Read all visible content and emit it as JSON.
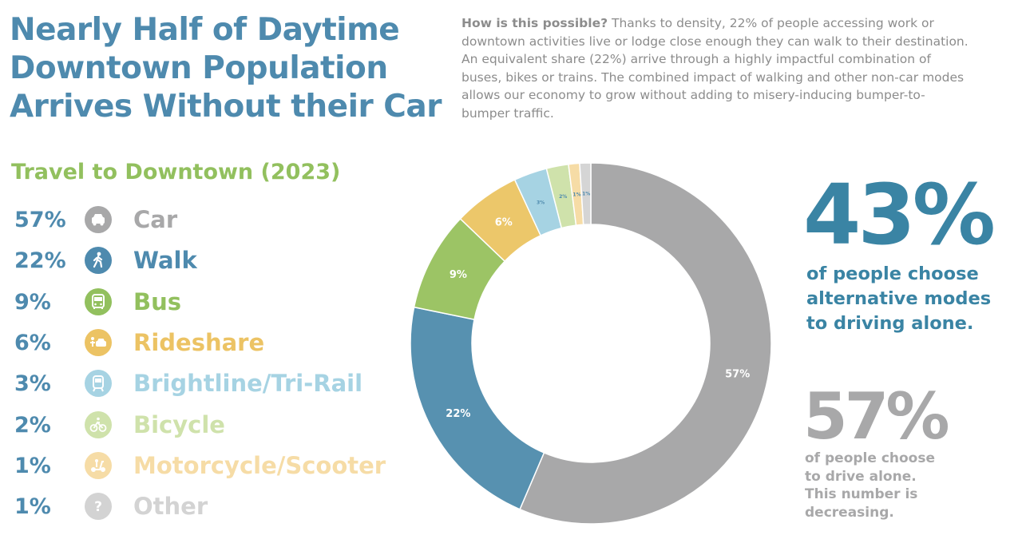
{
  "headline": [
    "Nearly Half of Daytime",
    "Downtown Population",
    "Arrives Without their Car"
  ],
  "intro": {
    "lead": "How is this possible?",
    "body": " Thanks to density, 22% of people accessing work or downtown activities live or lodge close enough they can walk to their destination. An equivalent share (22%) arrive through a highly impactful combination of buses, bikes or trains. The combined impact of walking and other non-car modes allows our economy to grow without adding to misery-inducing bumper-to-bumper traffic."
  },
  "colors": {
    "title_blue": "#4e8aae",
    "dark_teal": "#3a84a4",
    "green": "#92c05e",
    "grey": "#a8a8a9"
  },
  "legend": [
    {
      "pct": "57%",
      "label": "Car",
      "icon": "car-icon",
      "color": "#a8a8a9"
    },
    {
      "pct": "22%",
      "label": "Walk",
      "icon": "walk-icon",
      "color": "#4e8aae"
    },
    {
      "pct": "9%",
      "label": "Bus",
      "icon": "bus-icon",
      "color": "#92c05e"
    },
    {
      "pct": "6%",
      "label": "Rideshare",
      "icon": "rideshare-icon",
      "color": "#ecc364"
    },
    {
      "pct": "3%",
      "label": "Brightline/Tri-Rail",
      "icon": "train-icon",
      "color": "#a6d3e3"
    },
    {
      "pct": "2%",
      "label": "Bicycle",
      "icon": "bicycle-icon",
      "color": "#cfe2ab"
    },
    {
      "pct": "1%",
      "label": "Motorcycle/Scooter",
      "icon": "scooter-icon",
      "color": "#f6dca6"
    },
    {
      "pct": "1%",
      "label": "Other",
      "icon": "question-icon",
      "color": "#d3d3d3"
    }
  ],
  "chart_data": {
    "type": "pie",
    "title": "Travel to Downtown (2023)",
    "donut": true,
    "start_angle_deg": 0,
    "direction": "clockwise",
    "slices": [
      {
        "label": "Car",
        "value": 57,
        "text": "57%",
        "color": "#a8a8a9"
      },
      {
        "label": "Walk",
        "value": 22,
        "text": "22%",
        "color": "#5791b0"
      },
      {
        "label": "Bus",
        "value": 9,
        "text": "9%",
        "color": "#9cc465"
      },
      {
        "label": "Rideshare",
        "value": 6,
        "text": "6%",
        "color": "#ecc76a"
      },
      {
        "label": "Brightline/Tri-Rail",
        "value": 3,
        "text": "3%",
        "color": "#a6d3e3"
      },
      {
        "label": "Bicycle",
        "value": 2,
        "text": "2%",
        "color": "#cfe2ab"
      },
      {
        "label": "Motorcycle/Scooter",
        "value": 1,
        "text": "1%",
        "color": "#f6dca6"
      },
      {
        "label": "Other",
        "value": 1,
        "text": "1%",
        "color": "#d5d5d5"
      }
    ]
  },
  "stats": {
    "alt": {
      "value": "43%",
      "text": "of people choose\nalternative modes\nto driving alone."
    },
    "car": {
      "value": "57%",
      "text": "of people choose\nto drive alone.\nThis number is\ndecreasing."
    }
  }
}
